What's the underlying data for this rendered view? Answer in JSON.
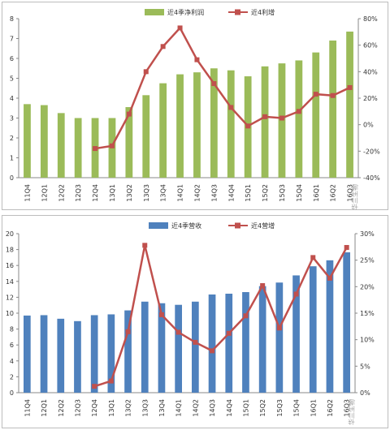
{
  "chart_data": [
    {
      "type": "bar+line",
      "categories": [
        "11Q4",
        "12Q1",
        "12Q2",
        "12Q3",
        "12Q4",
        "13Q1",
        "13Q2",
        "13Q3",
        "13Q4",
        "14Q1",
        "14Q2",
        "14Q3",
        "14Q4",
        "15Q1",
        "15Q2",
        "15Q3",
        "15Q4",
        "16Q1",
        "16Q2",
        "16Q3"
      ],
      "series": [
        {
          "name": "近4季净利润",
          "kind": "bar",
          "axis": "left",
          "color": "#9BBB59",
          "values": [
            3.7,
            3.65,
            3.25,
            3.0,
            3.0,
            3.0,
            3.55,
            4.15,
            4.75,
            5.2,
            5.3,
            5.5,
            5.4,
            5.1,
            5.6,
            5.75,
            5.9,
            6.3,
            6.9,
            7.35
          ]
        },
        {
          "name": "近4利增",
          "kind": "line",
          "axis": "right",
          "color": "#C0504D",
          "values": [
            null,
            null,
            null,
            null,
            -18,
            -16,
            8,
            40,
            59,
            73,
            49,
            31,
            13,
            -1,
            6,
            5,
            10,
            23,
            22,
            28
          ]
        }
      ],
      "left_axis": {
        "min": 0,
        "max": 8,
        "ticks": [
          "0",
          "1",
          "2",
          "3",
          "4",
          "5",
          "6",
          "7",
          "8"
        ]
      },
      "right_axis": {
        "min": -40,
        "max": 80,
        "ticks": [
          "-40%",
          "-20%",
          "0%",
          "20%",
          "40%",
          "60%",
          "80%"
        ]
      },
      "grid": false,
      "legend_position": "top"
    },
    {
      "type": "bar+line",
      "categories": [
        "11Q4",
        "12Q1",
        "12Q2",
        "12Q3",
        "12Q4",
        "13Q1",
        "13Q2",
        "13Q3",
        "13Q4",
        "14Q1",
        "14Q2",
        "14Q3",
        "14Q4",
        "15Q1",
        "15Q2",
        "15Q3",
        "15Q4",
        "16Q1",
        "16Q2",
        "16Q3"
      ],
      "series": [
        {
          "name": "近4季营收",
          "kind": "bar",
          "axis": "left",
          "color": "#4F81BD",
          "values": [
            9.7,
            9.75,
            9.3,
            9.0,
            9.75,
            9.85,
            10.35,
            11.45,
            11.25,
            11.05,
            11.45,
            12.35,
            12.45,
            12.65,
            13.4,
            13.85,
            14.75,
            15.9,
            16.65,
            17.65
          ]
        },
        {
          "name": "近4营增",
          "kind": "line",
          "axis": "right",
          "color": "#C0504D",
          "values": [
            null,
            null,
            null,
            null,
            1.2,
            2.2,
            11.5,
            27.8,
            14.7,
            11.4,
            9.5,
            7.9,
            11.2,
            14.5,
            20.2,
            12.2,
            18.6,
            25.5,
            21.6,
            27.4
          ]
        }
      ],
      "left_axis": {
        "min": 0,
        "max": 20,
        "ticks": [
          "0",
          "2",
          "4",
          "6",
          "8",
          "10",
          "12",
          "14",
          "16",
          "18",
          "20"
        ]
      },
      "right_axis": {
        "min": 0,
        "max": 30,
        "ticks": [
          "0%",
          "5%",
          "10%",
          "15%",
          "20%",
          "25%",
          "30%"
        ]
      },
      "grid": false,
      "legend_position": "top"
    }
  ],
  "watermark": "华兰生物"
}
